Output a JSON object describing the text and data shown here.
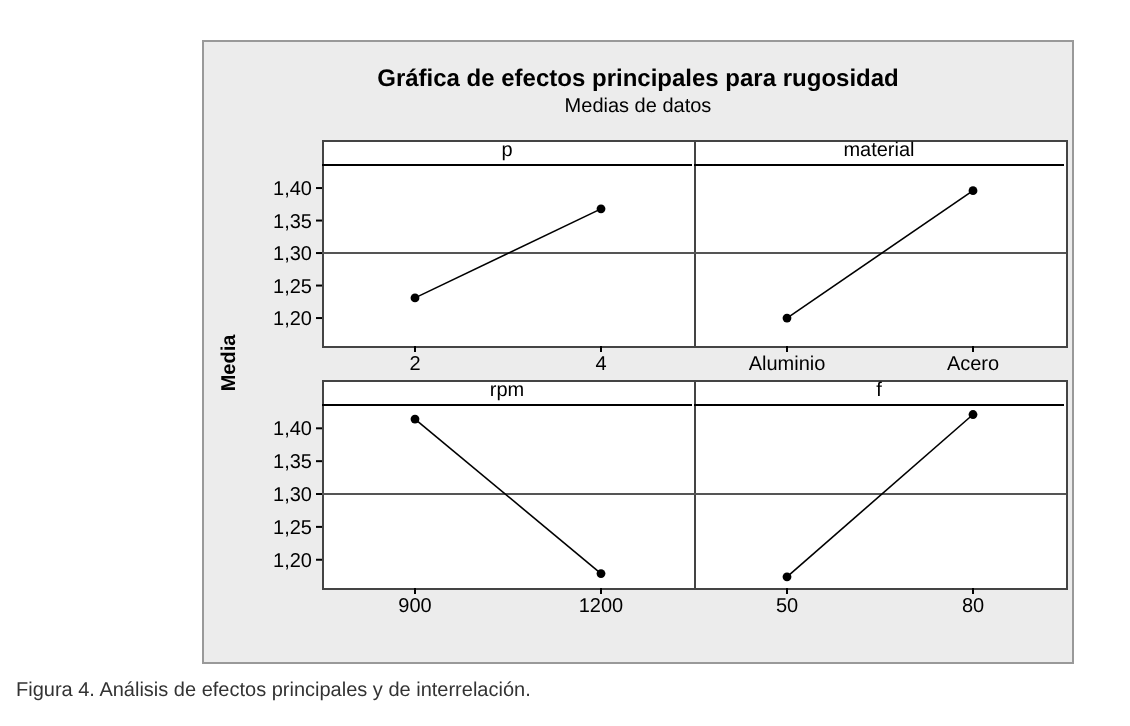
{
  "chart_data": [
    {
      "type": "line",
      "title": "Gráfica de efectos principales para rugosidad",
      "subtitle": "Medias de datos",
      "ylabel": "Media",
      "xlabel": "p",
      "categories": [
        "2",
        "4"
      ],
      "values": [
        1.231,
        1.368
      ],
      "color": "#000000",
      "marker": "circle",
      "ylim": [
        1.157,
        1.437
      ],
      "yticks": [
        {
          "value": 1.2,
          "label": "1,20"
        },
        {
          "value": 1.25,
          "label": "1,25"
        },
        {
          "value": 1.3,
          "label": "1,30"
        },
        {
          "value": 1.35,
          "label": "1,35"
        },
        {
          "value": 1.4,
          "label": "1,40"
        }
      ],
      "ref_lines": [
        {
          "axis": "y",
          "value": 1.3
        }
      ]
    },
    {
      "type": "line",
      "xlabel": "material",
      "categories": [
        "Aluminio",
        "Acero"
      ],
      "values": [
        1.2,
        1.396
      ],
      "color": "#000000",
      "marker": "circle",
      "ylim": [
        1.157,
        1.437
      ],
      "tick_labels": "x",
      "ref_lines": [
        {
          "axis": "y",
          "value": 1.3
        }
      ]
    },
    {
      "type": "line",
      "xlabel": "rpm",
      "categories": [
        "900",
        "1200"
      ],
      "values": [
        1.414,
        1.179
      ],
      "color": "#000000",
      "marker": "circle",
      "ylim": [
        1.157,
        1.437
      ],
      "yticks": [
        {
          "value": 1.2,
          "label": "1,20"
        },
        {
          "value": 1.25,
          "label": "1,25"
        },
        {
          "value": 1.3,
          "label": "1,30"
        },
        {
          "value": 1.35,
          "label": "1,35"
        },
        {
          "value": 1.4,
          "label": "1,40"
        }
      ],
      "ref_lines": [
        {
          "axis": "y",
          "value": 1.3
        }
      ]
    },
    {
      "type": "line",
      "xlabel": "f",
      "categories": [
        "50",
        "80"
      ],
      "values": [
        1.174,
        1.421
      ],
      "color": "#000000",
      "marker": "circle",
      "ylim": [
        1.157,
        1.437
      ],
      "tick_labels": "x",
      "ref_lines": [
        {
          "axis": "y",
          "value": 1.3
        }
      ],
      "annotations": [
        "Figura 4. Análisis de efectos principales y de interrelación."
      ]
    }
  ]
}
